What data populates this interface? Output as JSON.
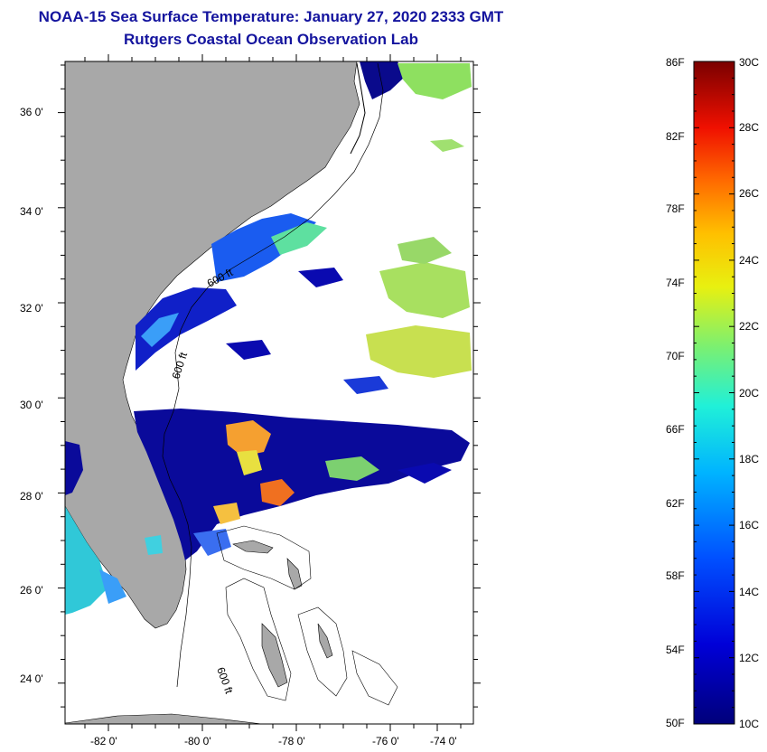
{
  "title": {
    "line1": "NOAA-15 Sea Surface Temperature:  January 27, 2020 2333 GMT",
    "line2": "Rutgers Coastal Ocean Observation Lab"
  },
  "axes": {
    "lat_labels": [
      "36 0'",
      "34 0'",
      "32 0'",
      "30 0'",
      "28 0'",
      "26 0'",
      "24 0'"
    ],
    "lon_labels": [
      "-82 0'",
      "-80 0'",
      "-78 0'",
      "-76 0'",
      "-74 0'"
    ]
  },
  "contour_labels": [
    "600 ft",
    "600 ft",
    "600 ft"
  ],
  "colorbar": {
    "fahrenheit_labels": [
      "86F",
      "82F",
      "78F",
      "74F",
      "70F",
      "66F",
      "62F",
      "58F",
      "54F",
      "50F"
    ],
    "celsius_labels": [
      "30C",
      "28C",
      "26C",
      "24C",
      "22C",
      "20C",
      "18C",
      "16C",
      "14C",
      "12C",
      "10C"
    ]
  },
  "colors": {
    "title": "#14149e",
    "land": "#a8a8a8",
    "cloud": "#ffffff",
    "cold_water": "#0a0a8c"
  }
}
